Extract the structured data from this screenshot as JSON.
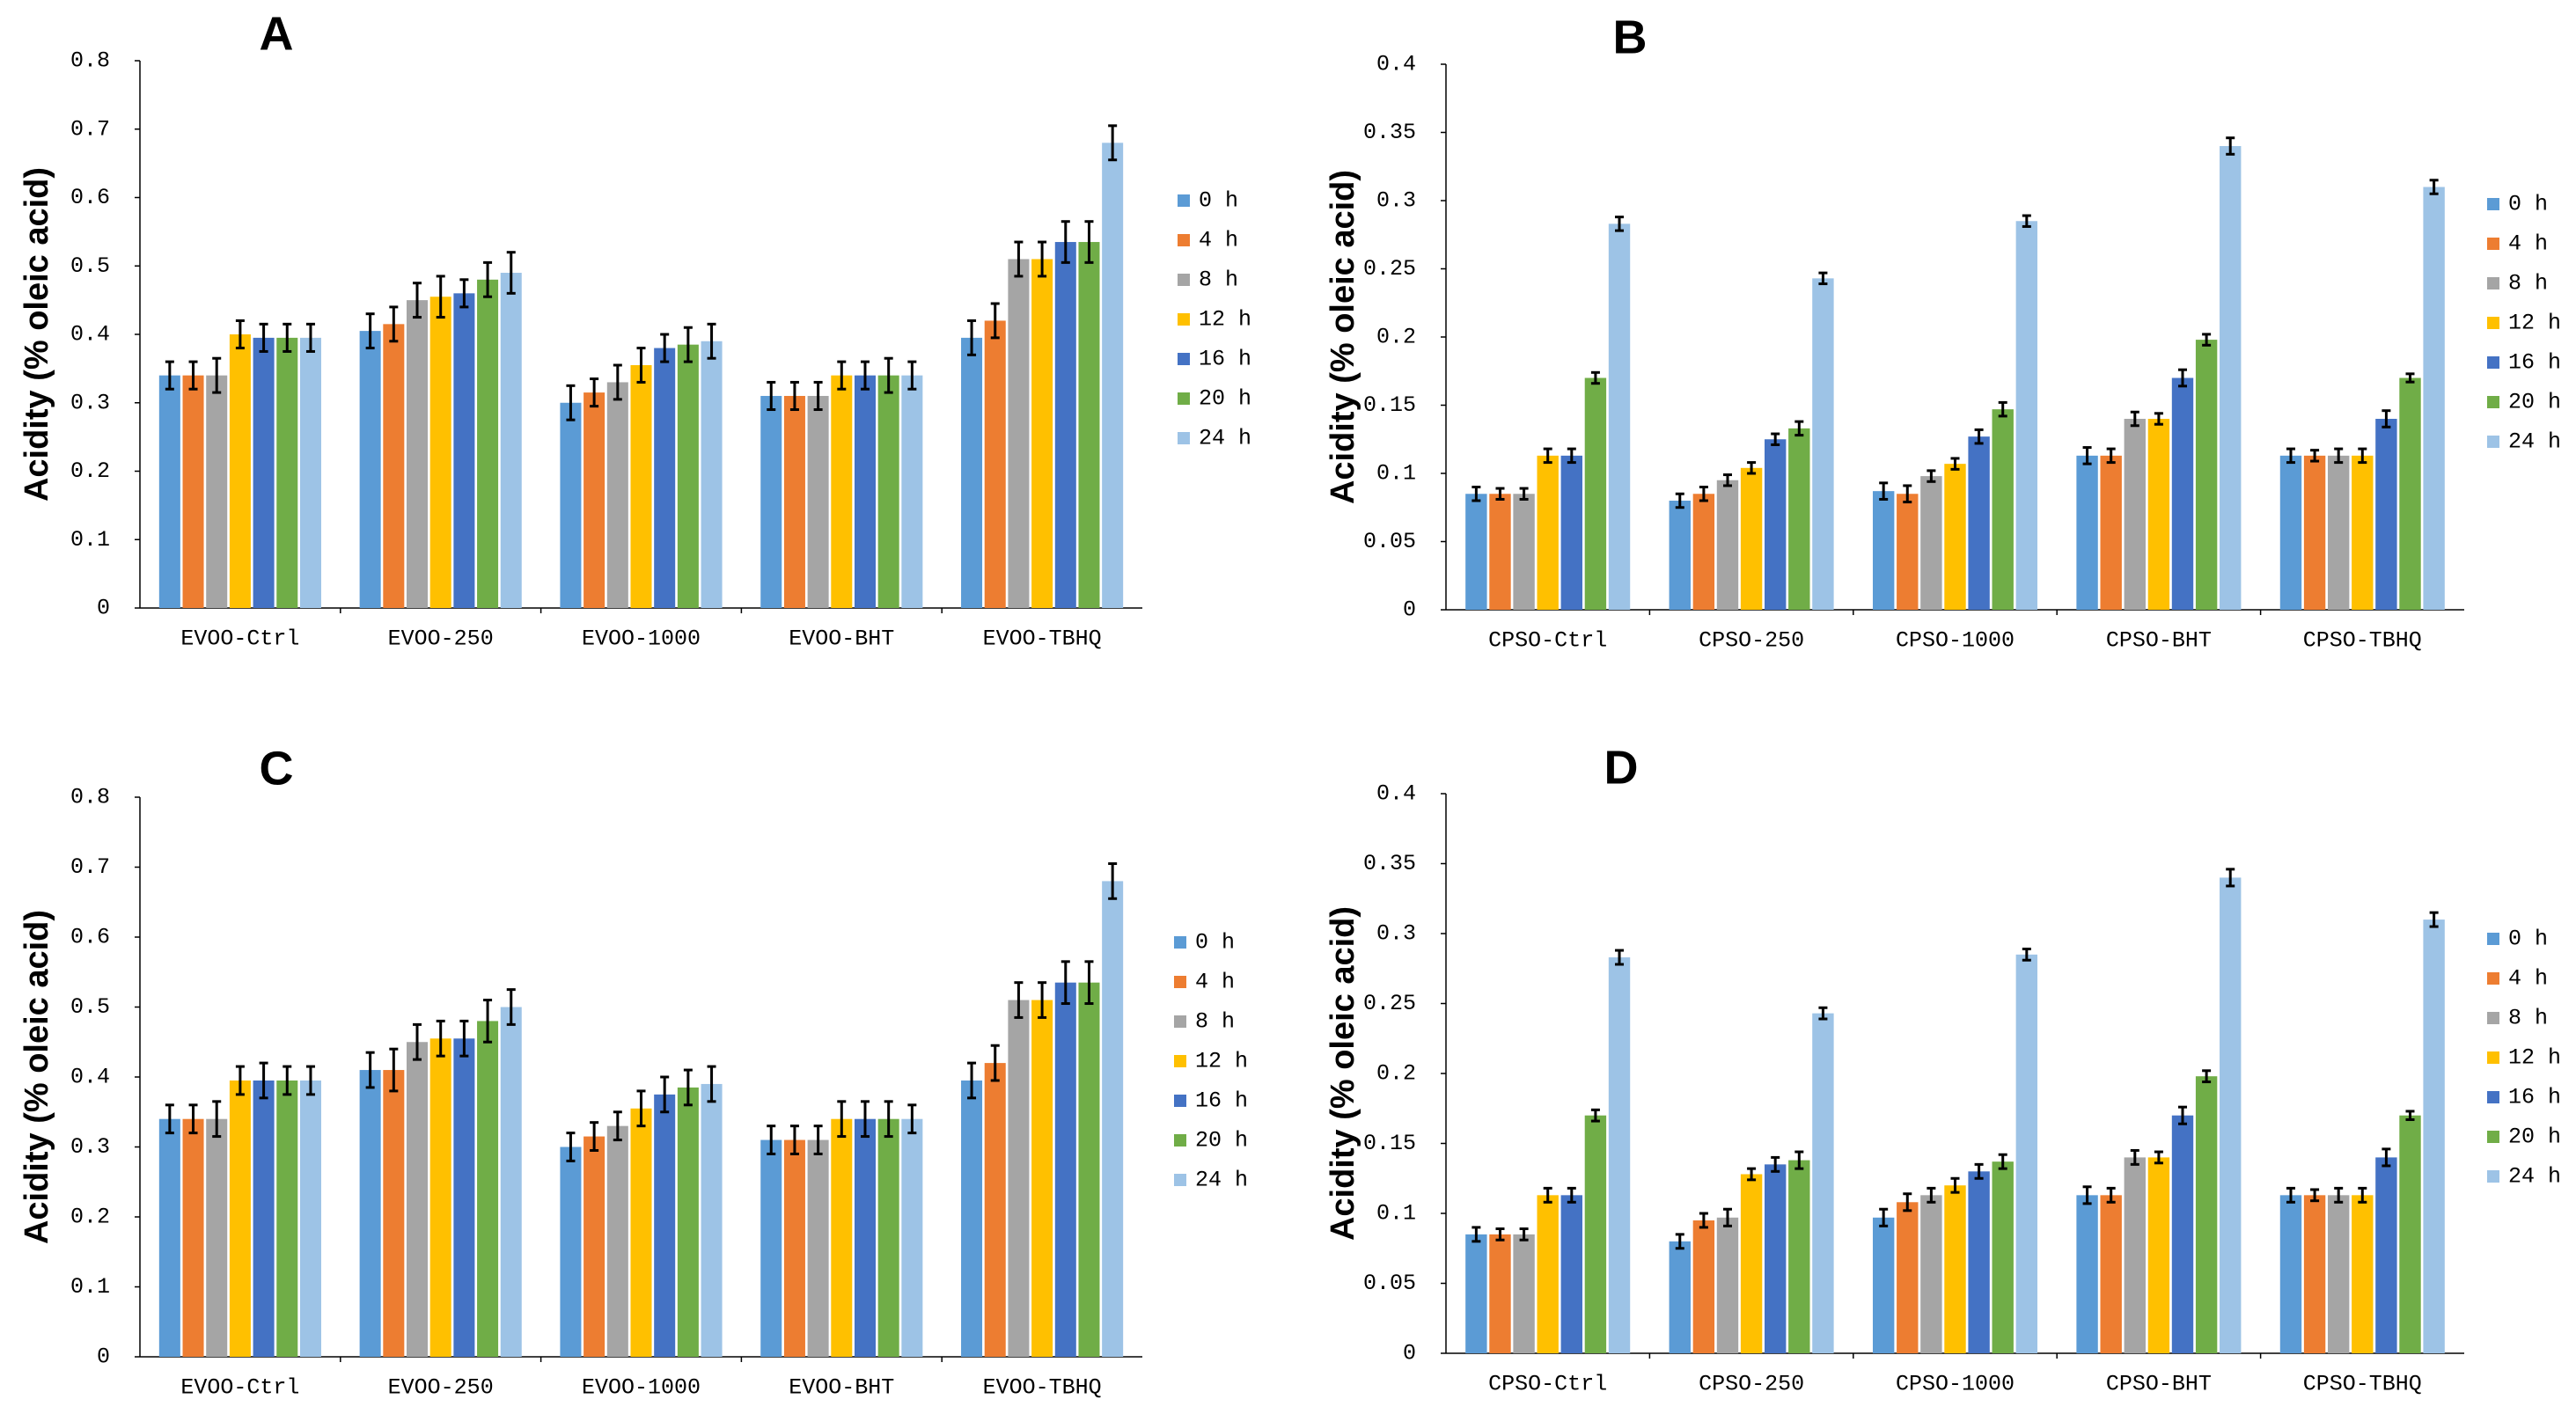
{
  "chart_data": [
    {
      "type": "bar",
      "title": "A",
      "ylabel": "Acidity (% oleic acid)",
      "legend": "right",
      "categories": [
        "EVOO-Ctrl",
        "EVOO-250",
        "EVOO-1000",
        "EVOO-BHT",
        "EVOO-TBHQ"
      ],
      "ylim": [
        0,
        0.8
      ],
      "yticks": [
        0,
        0.1,
        0.2,
        0.3,
        0.4,
        0.5,
        0.6,
        0.7,
        0.8
      ],
      "series": [
        {
          "name": "0 h",
          "color": "#5b9bd5",
          "values": [
            0.34,
            0.405,
            0.3,
            0.31,
            0.395
          ],
          "errors": [
            0.02,
            0.025,
            0.025,
            0.02,
            0.025
          ]
        },
        {
          "name": "4 h",
          "color": "#ed7d31",
          "values": [
            0.34,
            0.415,
            0.315,
            0.31,
            0.42
          ],
          "errors": [
            0.02,
            0.025,
            0.02,
            0.02,
            0.025
          ]
        },
        {
          "name": "8 h",
          "color": "#a5a5a5",
          "values": [
            0.34,
            0.45,
            0.33,
            0.31,
            0.51
          ],
          "errors": [
            0.025,
            0.025,
            0.025,
            0.02,
            0.025
          ]
        },
        {
          "name": "12 h",
          "color": "#ffc000",
          "values": [
            0.4,
            0.455,
            0.355,
            0.34,
            0.51
          ],
          "errors": [
            0.02,
            0.03,
            0.025,
            0.02,
            0.025
          ]
        },
        {
          "name": "16 h",
          "color": "#4472c4",
          "values": [
            0.395,
            0.46,
            0.38,
            0.34,
            0.535
          ],
          "errors": [
            0.02,
            0.02,
            0.02,
            0.02,
            0.03
          ]
        },
        {
          "name": "20 h",
          "color": "#70ad47",
          "values": [
            0.395,
            0.48,
            0.385,
            0.34,
            0.535
          ],
          "errors": [
            0.02,
            0.025,
            0.025,
            0.025,
            0.03
          ]
        },
        {
          "name": "24 h",
          "color": "#9dc3e6",
          "values": [
            0.395,
            0.49,
            0.39,
            0.34,
            0.68
          ],
          "errors": [
            0.02,
            0.03,
            0.025,
            0.02,
            0.025
          ]
        }
      ]
    },
    {
      "type": "bar",
      "title": "B",
      "ylabel": "Acidity (% oleic acid)",
      "legend": "right",
      "categories": [
        "CPSO-Ctrl",
        "CPSO-250",
        "CPSO-1000",
        "CPSO-BHT",
        "CPSO-TBHQ"
      ],
      "ylim": [
        0,
        0.4
      ],
      "yticks": [
        0,
        0.05,
        0.1,
        0.15,
        0.2,
        0.25,
        0.3,
        0.35,
        0.4
      ],
      "series": [
        {
          "name": "0 h",
          "color": "#5b9bd5",
          "values": [
            0.085,
            0.08,
            0.087,
            0.113,
            0.113
          ],
          "errors": [
            0.005,
            0.005,
            0.006,
            0.006,
            0.005
          ]
        },
        {
          "name": "4 h",
          "color": "#ed7d31",
          "values": [
            0.085,
            0.085,
            0.085,
            0.113,
            0.113
          ],
          "errors": [
            0.004,
            0.005,
            0.006,
            0.005,
            0.004
          ]
        },
        {
          "name": "8 h",
          "color": "#a5a5a5",
          "values": [
            0.085,
            0.095,
            0.098,
            0.14,
            0.113
          ],
          "errors": [
            0.004,
            0.004,
            0.004,
            0.005,
            0.005
          ]
        },
        {
          "name": "12 h",
          "color": "#ffc000",
          "values": [
            0.113,
            0.104,
            0.107,
            0.14,
            0.113
          ],
          "errors": [
            0.005,
            0.004,
            0.004,
            0.004,
            0.005
          ]
        },
        {
          "name": "16 h",
          "color": "#4472c4",
          "values": [
            0.113,
            0.125,
            0.127,
            0.17,
            0.14
          ],
          "errors": [
            0.005,
            0.004,
            0.005,
            0.006,
            0.006
          ]
        },
        {
          "name": "20 h",
          "color": "#70ad47",
          "values": [
            0.17,
            0.133,
            0.147,
            0.198,
            0.17
          ],
          "errors": [
            0.004,
            0.005,
            0.005,
            0.004,
            0.003
          ]
        },
        {
          "name": "24 h",
          "color": "#9dc3e6",
          "values": [
            0.283,
            0.243,
            0.285,
            0.34,
            0.31
          ],
          "errors": [
            0.005,
            0.004,
            0.004,
            0.006,
            0.005
          ]
        }
      ]
    },
    {
      "type": "bar",
      "title": "C",
      "ylabel": "Acidity (% oleic acid)",
      "legend": "right",
      "categories": [
        "EVOO-Ctrl",
        "EVOO-250",
        "EVOO-1000",
        "EVOO-BHT",
        "EVOO-TBHQ"
      ],
      "ylim": [
        0,
        0.8
      ],
      "yticks": [
        0,
        0.1,
        0.2,
        0.3,
        0.4,
        0.5,
        0.6,
        0.7,
        0.8
      ],
      "series": [
        {
          "name": "0 h",
          "color": "#5b9bd5",
          "values": [
            0.34,
            0.41,
            0.3,
            0.31,
            0.395
          ],
          "errors": [
            0.02,
            0.025,
            0.02,
            0.02,
            0.025
          ]
        },
        {
          "name": "4 h",
          "color": "#ed7d31",
          "values": [
            0.34,
            0.41,
            0.315,
            0.31,
            0.42
          ],
          "errors": [
            0.02,
            0.03,
            0.02,
            0.02,
            0.025
          ]
        },
        {
          "name": "8 h",
          "color": "#a5a5a5",
          "values": [
            0.34,
            0.45,
            0.33,
            0.31,
            0.51
          ],
          "errors": [
            0.025,
            0.025,
            0.02,
            0.02,
            0.025
          ]
        },
        {
          "name": "12 h",
          "color": "#ffc000",
          "values": [
            0.395,
            0.455,
            0.355,
            0.34,
            0.51
          ],
          "errors": [
            0.02,
            0.025,
            0.025,
            0.025,
            0.025
          ]
        },
        {
          "name": "16 h",
          "color": "#4472c4",
          "values": [
            0.395,
            0.455,
            0.375,
            0.34,
            0.535
          ],
          "errors": [
            0.025,
            0.025,
            0.025,
            0.025,
            0.03
          ]
        },
        {
          "name": "20 h",
          "color": "#70ad47",
          "values": [
            0.395,
            0.48,
            0.385,
            0.34,
            0.535
          ],
          "errors": [
            0.02,
            0.03,
            0.025,
            0.025,
            0.03
          ]
        },
        {
          "name": "24 h",
          "color": "#9dc3e6",
          "values": [
            0.395,
            0.5,
            0.39,
            0.34,
            0.68
          ],
          "errors": [
            0.02,
            0.025,
            0.025,
            0.02,
            0.025
          ]
        }
      ]
    },
    {
      "type": "bar",
      "title": "D",
      "ylabel": "Acidity (% oleic acid)",
      "legend": "right",
      "categories": [
        "CPSO-Ctrl",
        "CPSO-250",
        "CPSO-1000",
        "CPSO-BHT",
        "CPSO-TBHQ"
      ],
      "ylim": [
        0,
        0.4
      ],
      "yticks": [
        0,
        0.05,
        0.1,
        0.15,
        0.2,
        0.25,
        0.3,
        0.35,
        0.4
      ],
      "series": [
        {
          "name": "0 h",
          "color": "#5b9bd5",
          "values": [
            0.085,
            0.08,
            0.097,
            0.113,
            0.113
          ],
          "errors": [
            0.005,
            0.005,
            0.006,
            0.006,
            0.005
          ]
        },
        {
          "name": "4 h",
          "color": "#ed7d31",
          "values": [
            0.085,
            0.095,
            0.108,
            0.113,
            0.113
          ],
          "errors": [
            0.004,
            0.005,
            0.006,
            0.005,
            0.004
          ]
        },
        {
          "name": "8 h",
          "color": "#a5a5a5",
          "values": [
            0.085,
            0.097,
            0.113,
            0.14,
            0.113
          ],
          "errors": [
            0.004,
            0.006,
            0.005,
            0.005,
            0.005
          ]
        },
        {
          "name": "12 h",
          "color": "#ffc000",
          "values": [
            0.113,
            0.128,
            0.12,
            0.14,
            0.113
          ],
          "errors": [
            0.005,
            0.004,
            0.005,
            0.004,
            0.005
          ]
        },
        {
          "name": "16 h",
          "color": "#4472c4",
          "values": [
            0.113,
            0.135,
            0.13,
            0.17,
            0.14
          ],
          "errors": [
            0.005,
            0.005,
            0.005,
            0.006,
            0.006
          ]
        },
        {
          "name": "20 h",
          "color": "#70ad47",
          "values": [
            0.17,
            0.138,
            0.137,
            0.198,
            0.17
          ],
          "errors": [
            0.004,
            0.006,
            0.005,
            0.004,
            0.003
          ]
        },
        {
          "name": "24 h",
          "color": "#9dc3e6",
          "values": [
            0.283,
            0.243,
            0.285,
            0.34,
            0.31
          ],
          "errors": [
            0.005,
            0.004,
            0.004,
            0.006,
            0.005
          ]
        }
      ]
    }
  ]
}
